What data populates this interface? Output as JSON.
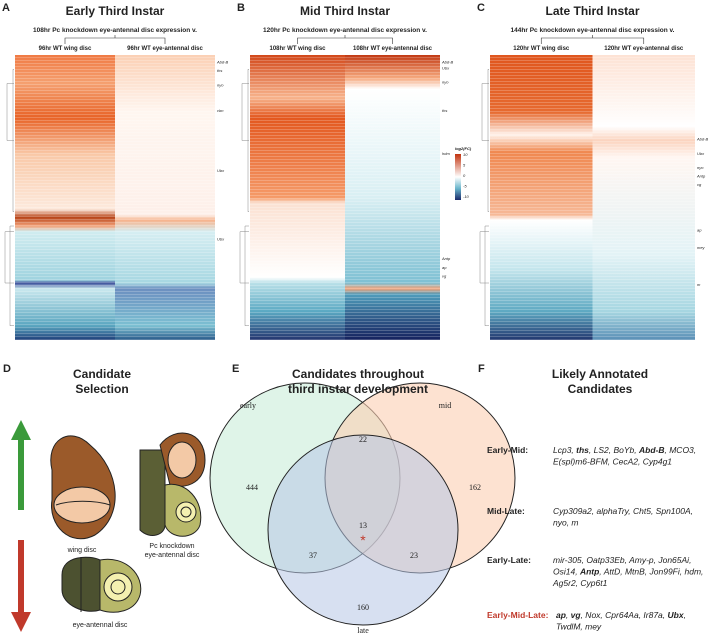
{
  "heatmaps": [
    {
      "letter": "A",
      "title": "Early Third Instar",
      "subtitle": "108hr Pc knockdown eye-antennal disc expression v.",
      "columns": [
        "96hr WT wing disc",
        "96hr WT eye-antennal disc"
      ],
      "genes": [
        "Abd-B",
        "ths",
        "nyo",
        "cbn",
        "Ubx",
        "Ubx"
      ]
    },
    {
      "letter": "B",
      "title": "Mid Third Instar",
      "subtitle": "120hr Pc knockdown eye-antennal disc expression v.",
      "columns": [
        "108hr WT wing disc",
        "108hr WT eye-antennal disc"
      ],
      "genes": [
        "Abd-B",
        "Ubx",
        "nyo",
        "ths",
        "hdm",
        "Antp",
        "ap",
        "vg"
      ]
    },
    {
      "letter": "C",
      "title": "Late Third Instar",
      "subtitle": "144hr Pc knockdown eye-antennal disc expression v.",
      "columns": [
        "120hr WT wing disc",
        "120hr WT eye-antennal disc"
      ],
      "genes": [
        "Abd-B",
        "Ubx",
        "nyo",
        "Antp",
        "vg",
        "ap",
        "mey",
        "m"
      ]
    }
  ],
  "legend": {
    "title": "log2(FC)",
    "ticks": [
      "10",
      "5",
      "0",
      "-5",
      "-10"
    ]
  },
  "selection": {
    "letter": "D",
    "title": [
      "Candidate",
      "Selection"
    ],
    "wing": "wing disc",
    "knockdown": [
      "Pc knockdown",
      "eye-antennal disc"
    ],
    "wildtype": "eye-antennal disc"
  },
  "venn": {
    "letter": "E",
    "title": [
      "Candidates throughout",
      "third instar development"
    ],
    "sets": [
      "early",
      "mid",
      "late"
    ],
    "counts": {
      "early": "444",
      "early_mid": "22",
      "mid": "162",
      "early_late": "37",
      "all": "13",
      "mid_late": "23",
      "late": "160"
    },
    "mark": "*"
  },
  "candidates": {
    "letter": "F",
    "title": [
      "Likely Annotated",
      "Candidates"
    ],
    "rows": [
      {
        "label": "Early-Mid:",
        "lines": [
          [
            "Lcp3, ",
            {
              "text": "ths",
              "bold": true
            },
            ", LS2, BoYb, ",
            {
              "text": "Abd-B",
              "bold": true
            },
            ", MCO3,"
          ],
          [
            "E(spl)m6-BFM, CecA2, Cyp4g1"
          ]
        ]
      },
      {
        "label": "Mid-Late:",
        "lines": [
          [
            "Cyp309a2, alphaTry, Cht5, Spn100A,"
          ],
          [
            "nyo, m"
          ]
        ]
      },
      {
        "label": "Early-Late:",
        "lines": [
          [
            "mir-305, Oatp33Eb, Amy-p, Jon65Ai,"
          ],
          [
            "Osi14, ",
            {
              "text": "Antp",
              "bold": true
            },
            ", AttD, MtnB, Jon99Fi, hdm,"
          ],
          [
            "Ag5r2, Cyp6t1"
          ]
        ]
      },
      {
        "label": "Early-Mid-Late:",
        "color": "#c0392b",
        "lines": [
          [
            {
              "text": "ap",
              "bold": true
            },
            ", ",
            {
              "text": "vg",
              "bold": true
            },
            ", Nox, Cpr64Aa, Ir87a, ",
            {
              "text": "Ubx",
              "bold": true
            },
            ","
          ],
          [
            "TwdlM, mey"
          ]
        ]
      }
    ]
  }
}
